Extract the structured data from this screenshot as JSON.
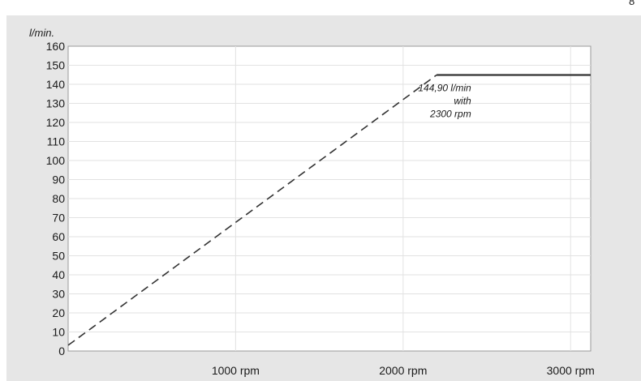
{
  "corner_text": "8",
  "chart_data": {
    "type": "line",
    "ylabel": "l/min.",
    "ylim": [
      0,
      160
    ],
    "yticks": [
      0,
      10,
      20,
      30,
      40,
      50,
      60,
      70,
      80,
      90,
      100,
      110,
      120,
      130,
      140,
      150,
      160
    ],
    "xlim": [
      0,
      3120
    ],
    "xticks": [
      {
        "value": 1000,
        "label": "1000 rpm"
      },
      {
        "value": 2000,
        "label": "2000 rpm"
      },
      {
        "value": 3000,
        "label": "3000 rpm"
      }
    ],
    "grid": true,
    "series": [
      {
        "style": "dashed",
        "color": "#333333",
        "points": [
          [
            0,
            3
          ],
          [
            2200,
            144.9
          ]
        ]
      },
      {
        "style": "solid",
        "color": "#333333",
        "points": [
          [
            2200,
            144.9
          ],
          [
            3120,
            144.9
          ]
        ]
      }
    ],
    "annotation": {
      "lines": [
        "144,90 l/min",
        "with",
        "2300 rpm"
      ],
      "x": 2300,
      "y": 144.9
    }
  }
}
